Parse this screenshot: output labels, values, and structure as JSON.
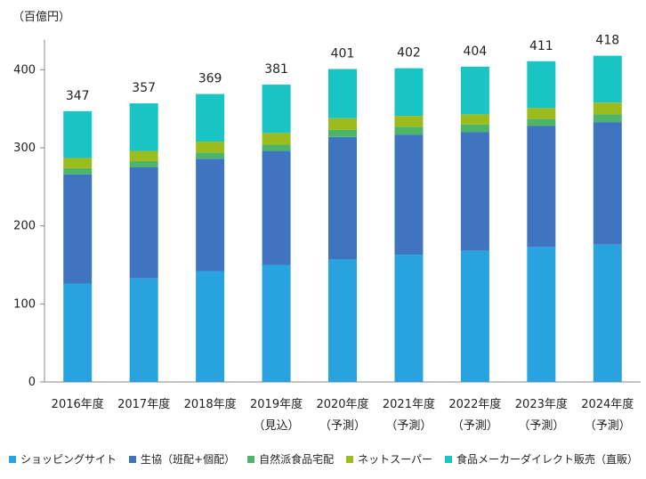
{
  "chart_data": {
    "type": "bar",
    "stacked": true,
    "unit_label": "（百億円）",
    "categories": [
      [
        "2016年度",
        ""
      ],
      [
        "2017年度",
        ""
      ],
      [
        "2018年度",
        ""
      ],
      [
        "2019年度",
        "（見込）"
      ],
      [
        "2020年度",
        "（予測）"
      ],
      [
        "2021年度",
        "（予測）"
      ],
      [
        "2022年度",
        "（予測）"
      ],
      [
        "2023年度",
        "（予測）"
      ],
      [
        "2024年度",
        "（予測）"
      ]
    ],
    "series": [
      {
        "name": "ショッピングサイト",
        "color": "#29a3e0",
        "values": [
          126,
          133,
          142,
          150,
          157,
          163,
          168,
          173,
          176
        ]
      },
      {
        "name": "生協（班配+個配）",
        "color": "#3f74c0",
        "values": [
          140,
          142,
          144,
          146,
          157,
          154,
          152,
          155,
          157
        ]
      },
      {
        "name": "自然派食品宅配",
        "color": "#4cb56a",
        "values": [
          8,
          8,
          8,
          8,
          9,
          10,
          10,
          9,
          10
        ]
      },
      {
        "name": "ネットスーパー",
        "color": "#9cbb1c",
        "values": [
          13,
          13,
          14,
          15,
          15,
          14,
          13,
          14,
          15
        ]
      },
      {
        "name": "食品メーカーダイレクト販売（直販）",
        "color": "#18c4c4",
        "values": [
          60,
          61,
          61,
          62,
          63,
          61,
          61,
          60,
          60
        ]
      }
    ],
    "totals": [
      347,
      357,
      369,
      381,
      401,
      402,
      404,
      411,
      418
    ],
    "y_ticks": [
      0,
      100,
      200,
      300,
      400
    ],
    "ylim": [
      0,
      450
    ],
    "grid": false,
    "legend_position": "bottom"
  }
}
